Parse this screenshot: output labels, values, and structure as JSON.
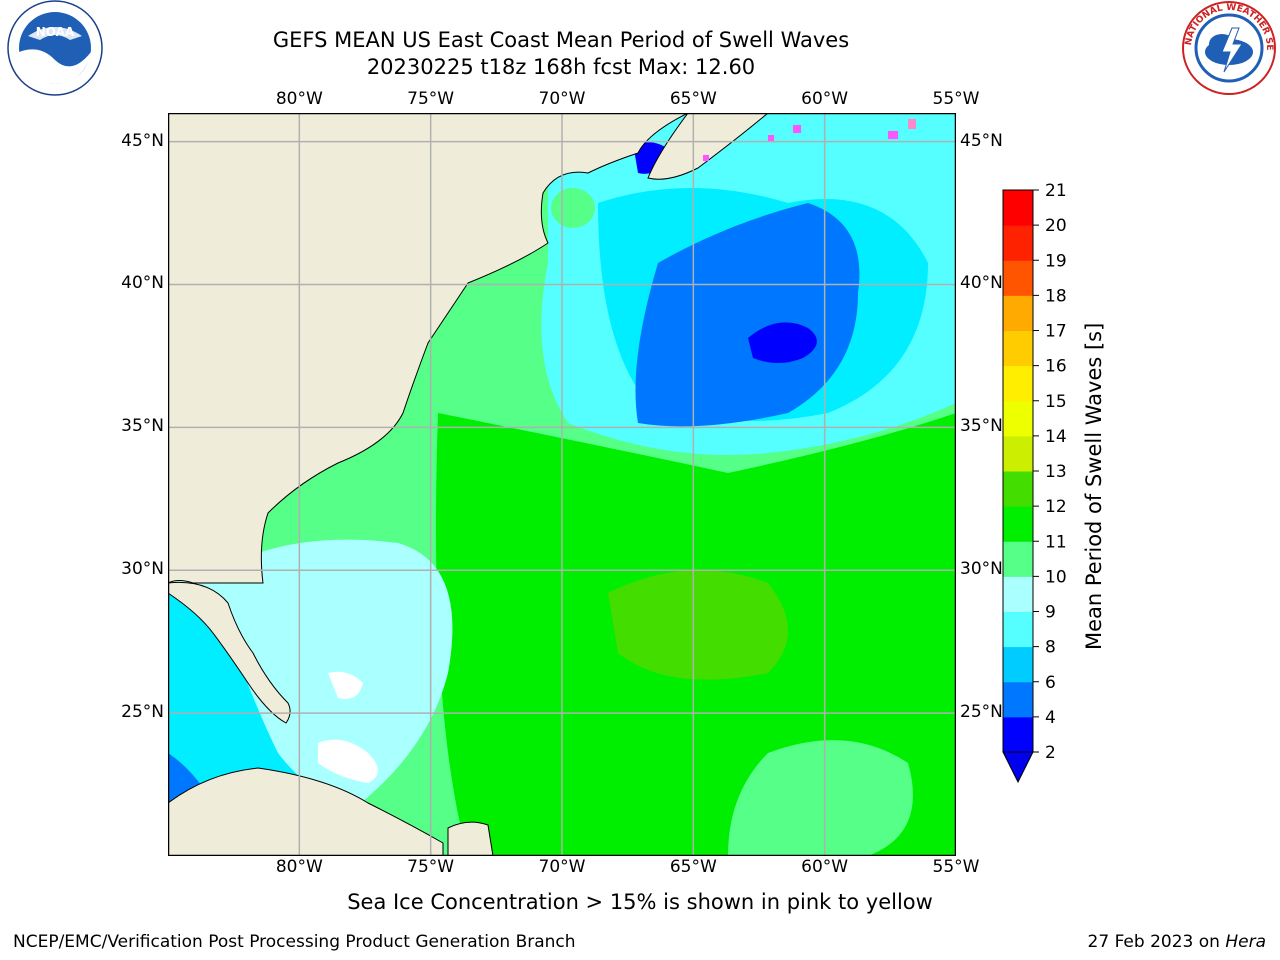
{
  "header": {
    "title_line1": "GEFS MEAN US East Coast Mean Period of Swell Waves",
    "title_line2": "20230225 t18z 168h fcst   Max: 12.60"
  },
  "logos": {
    "noaa_text": "NOAA",
    "nws_text": "NATIONAL WEATHER SERVICE"
  },
  "map": {
    "lon_labels": [
      "80°W",
      "75°W",
      "70°W",
      "65°W",
      "60°W",
      "55°W"
    ],
    "lat_labels": [
      "45°N",
      "40°N",
      "35°N",
      "30°N",
      "25°N"
    ],
    "lon_range": [
      -85,
      -55
    ],
    "lat_range": [
      20,
      46
    ]
  },
  "colorbar": {
    "label": "Mean Period of Swell Waves [s]",
    "ticks": [
      "2",
      "4",
      "6",
      "8",
      "9",
      "10",
      "11",
      "12",
      "13",
      "14",
      "15",
      "16",
      "17",
      "18",
      "19",
      "20",
      "21"
    ],
    "colors": [
      "#0000ff",
      "#0077ff",
      "#00ccff",
      "#00eeff",
      "#55ffff",
      "#aaffff",
      "#55ff88",
      "#00ee00",
      "#44dd00",
      "#99dd00",
      "#ccee00",
      "#eeff00",
      "#ffee00",
      "#ffcc00",
      "#ffaa00",
      "#ff8800",
      "#ff5500",
      "#ff2200",
      "#ff0000"
    ],
    "under_color": "#0000ee"
  },
  "caption": "Sea Ice Concentration > 15% is shown in pink to yellow",
  "footer": {
    "left": "NCEP/EMC/Verification Post Processing Product Generation Branch",
    "right_date": "27 Feb 2023 on ",
    "right_host": "Hera"
  }
}
